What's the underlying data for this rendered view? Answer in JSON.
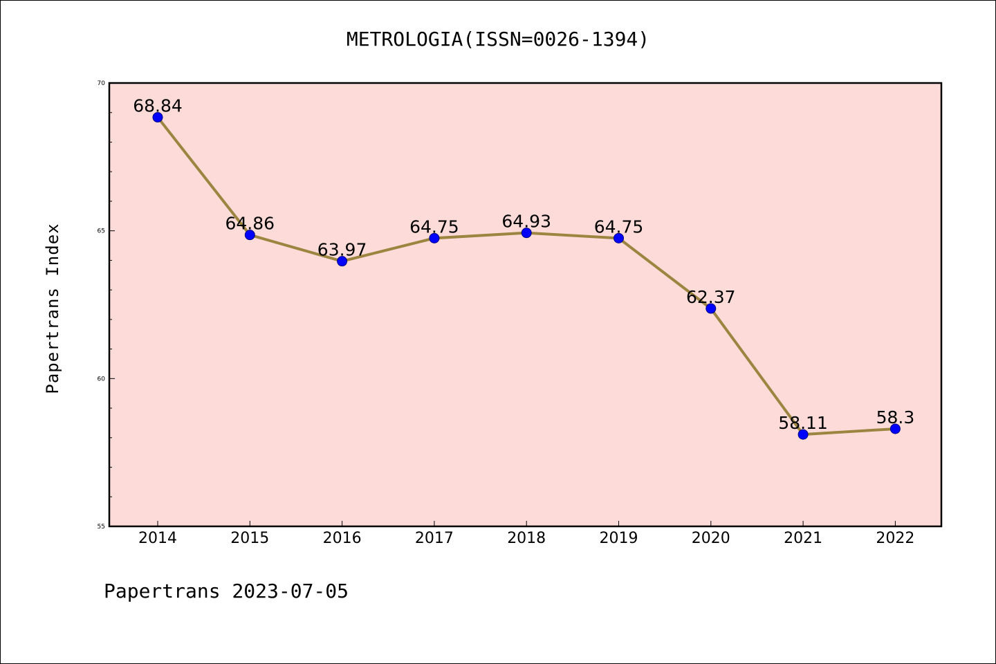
{
  "chart_data": {
    "type": "line",
    "title": "METROLOGIA(ISSN=0026-1394)",
    "xlabel": "",
    "ylabel": "Papertrans Index",
    "categories": [
      "2014",
      "2015",
      "2016",
      "2017",
      "2018",
      "2019",
      "2020",
      "2021",
      "2022"
    ],
    "values": [
      68.84,
      64.86,
      63.97,
      64.75,
      64.93,
      64.75,
      62.37,
      58.11,
      58.3
    ],
    "data_labels": [
      "68.84",
      "64.86",
      "63.97",
      "64.75",
      "64.93",
      "64.75",
      "62.37",
      "58.11",
      "58.3"
    ],
    "ylim": [
      55,
      70
    ],
    "yticks": [
      "55",
      "60",
      "65",
      "70"
    ],
    "grid": false,
    "colors": {
      "plot_background": "#fddbd8",
      "line": "#9c8540",
      "marker": "#0000ff",
      "axis": "#000000"
    }
  },
  "footer": "Papertrans 2023-07-05"
}
